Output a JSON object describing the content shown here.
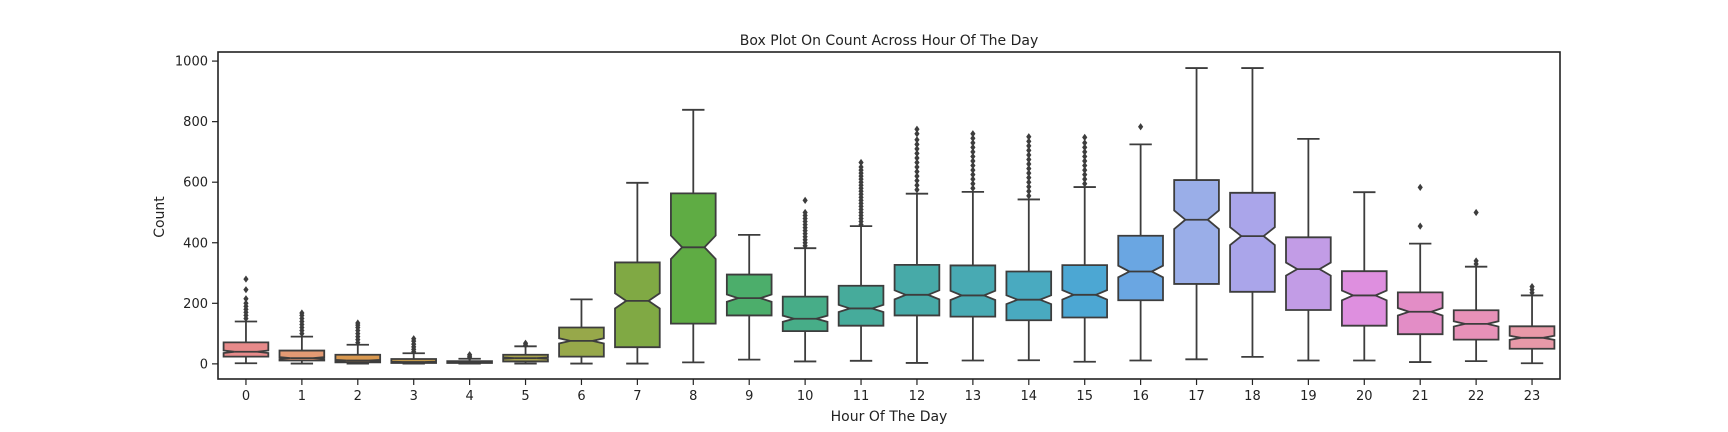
{
  "chart_data": {
    "type": "boxplot",
    "title": "Box Plot On Count Across Hour Of The Day",
    "xlabel": "Hour Of The Day",
    "ylabel": "Count",
    "ylim": [
      -50,
      1030
    ],
    "yticks": [
      0,
      200,
      400,
      600,
      800,
      1000
    ],
    "notched": true,
    "grid": false,
    "categories": [
      "0",
      "1",
      "2",
      "3",
      "4",
      "5",
      "6",
      "7",
      "8",
      "9",
      "10",
      "11",
      "12",
      "13",
      "14",
      "15",
      "16",
      "17",
      "18",
      "19",
      "20",
      "21",
      "22",
      "23"
    ],
    "series": [
      {
        "category": "0",
        "min": 2,
        "q1": 24,
        "median": 40,
        "q3": 71,
        "max": 140,
        "outliers": [
          150,
          160,
          170,
          180,
          190,
          200,
          215,
          245,
          280
        ],
        "color": "#e78a8a"
      },
      {
        "category": "1",
        "min": 1,
        "q1": 11,
        "median": 19,
        "q3": 44,
        "max": 90,
        "outliers": [
          100,
          110,
          120,
          130,
          140,
          150,
          160,
          168
        ],
        "color": "#e39a74"
      },
      {
        "category": "2",
        "min": 1,
        "q1": 5,
        "median": 11,
        "q3": 30,
        "max": 63,
        "outliers": [
          70,
          80,
          90,
          100,
          110,
          120,
          128,
          135
        ],
        "color": "#d9984f"
      },
      {
        "category": "3",
        "min": 1,
        "q1": 3,
        "median": 6,
        "q3": 16,
        "max": 35,
        "outliers": [
          40,
          48,
          56,
          65,
          75,
          83
        ],
        "color": "#c59b4b"
      },
      {
        "category": "4",
        "min": 1,
        "q1": 3,
        "median": 6,
        "q3": 9,
        "max": 17,
        "outliers": [
          20,
          25,
          30
        ],
        "color": "#b59d4b"
      },
      {
        "category": "5",
        "min": 1,
        "q1": 8,
        "median": 19,
        "q3": 30,
        "max": 58,
        "outliers": [
          62,
          68
        ],
        "color": "#a7a24b"
      },
      {
        "category": "6",
        "min": 1,
        "q1": 24,
        "median": 76,
        "q3": 120,
        "max": 213,
        "outliers": [],
        "color": "#97a84a"
      },
      {
        "category": "7",
        "min": 1,
        "q1": 55,
        "median": 208,
        "q3": 335,
        "max": 598,
        "outliers": [],
        "color": "#80a944"
      },
      {
        "category": "8",
        "min": 5,
        "q1": 133,
        "median": 385,
        "q3": 563,
        "max": 839,
        "outliers": [],
        "color": "#5fac44"
      },
      {
        "category": "9",
        "min": 14,
        "q1": 160,
        "median": 217,
        "q3": 295,
        "max": 426,
        "outliers": [],
        "color": "#4cae6b"
      },
      {
        "category": "10",
        "min": 8,
        "q1": 108,
        "median": 149,
        "q3": 222,
        "max": 382,
        "outliers": [
          390,
          400,
          410,
          420,
          430,
          440,
          450,
          460,
          470,
          480,
          490,
          500,
          540
        ],
        "color": "#47ad88"
      },
      {
        "category": "11",
        "min": 10,
        "q1": 126,
        "median": 183,
        "q3": 258,
        "max": 455,
        "outliers": [
          460,
          470,
          480,
          490,
          500,
          510,
          520,
          530,
          540,
          550,
          560,
          570,
          580,
          590,
          600,
          610,
          620,
          630,
          640,
          650,
          665
        ],
        "color": "#46ab9b"
      },
      {
        "category": "12",
        "min": 3,
        "q1": 160,
        "median": 228,
        "q3": 327,
        "max": 562,
        "outliers": [
          575,
          590,
          605,
          620,
          635,
          650,
          665,
          680,
          695,
          710,
          725,
          740,
          760,
          775
        ],
        "color": "#47aaa8"
      },
      {
        "category": "13",
        "min": 11,
        "q1": 156,
        "median": 226,
        "q3": 325,
        "max": 568,
        "outliers": [
          580,
          595,
          610,
          625,
          640,
          655,
          670,
          685,
          700,
          715,
          730,
          745,
          760
        ],
        "color": "#48aab3"
      },
      {
        "category": "14",
        "min": 12,
        "q1": 144,
        "median": 212,
        "q3": 305,
        "max": 543,
        "outliers": [
          555,
          570,
          585,
          600,
          615,
          630,
          645,
          660,
          675,
          690,
          705,
          720,
          735,
          750
        ],
        "color": "#49aac0"
      },
      {
        "category": "15",
        "min": 7,
        "q1": 153,
        "median": 228,
        "q3": 326,
        "max": 584,
        "outliers": [
          595,
          610,
          625,
          640,
          655,
          670,
          685,
          700,
          715,
          730,
          748
        ],
        "color": "#4ca7d3"
      },
      {
        "category": "16",
        "min": 11,
        "q1": 210,
        "median": 305,
        "q3": 423,
        "max": 725,
        "outliers": [
          783
        ],
        "color": "#6aa6e2"
      },
      {
        "category": "17",
        "min": 15,
        "q1": 264,
        "median": 476,
        "q3": 607,
        "max": 977,
        "outliers": [],
        "color": "#9aaee8"
      },
      {
        "category": "18",
        "min": 23,
        "q1": 238,
        "median": 422,
        "q3": 565,
        "max": 977,
        "outliers": [],
        "color": "#aaa5ea"
      },
      {
        "category": "19",
        "min": 11,
        "q1": 178,
        "median": 313,
        "q3": 418,
        "max": 743,
        "outliers": [],
        "color": "#c29ce6"
      },
      {
        "category": "20",
        "min": 11,
        "q1": 126,
        "median": 226,
        "q3": 306,
        "max": 567,
        "outliers": [],
        "color": "#de8fdf"
      },
      {
        "category": "21",
        "min": 6,
        "q1": 98,
        "median": 172,
        "q3": 236,
        "max": 397,
        "outliers": [
          455,
          583
        ],
        "color": "#e38dc6"
      },
      {
        "category": "22",
        "min": 9,
        "q1": 80,
        "median": 132,
        "q3": 177,
        "max": 321,
        "outliers": [
          330,
          340,
          500
        ],
        "color": "#e791b8"
      },
      {
        "category": "23",
        "min": 2,
        "q1": 50,
        "median": 86,
        "q3": 124,
        "max": 226,
        "outliers": [
          235,
          245,
          255
        ],
        "color": "#e899a8"
      }
    ]
  }
}
